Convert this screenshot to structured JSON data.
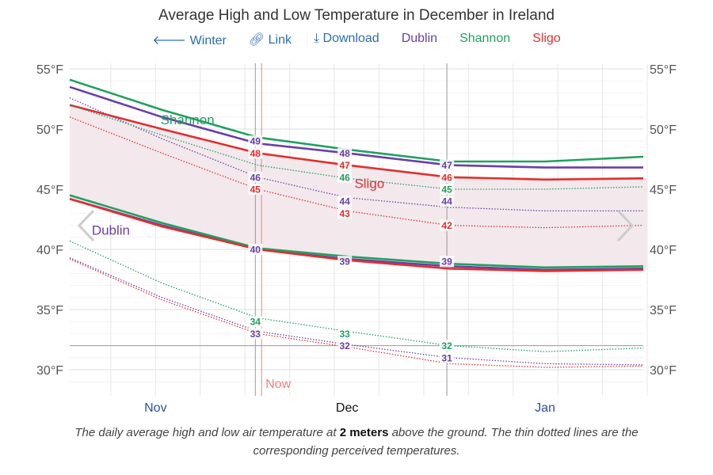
{
  "title": "Average High and Low Temperature in December in Ireland",
  "toolbar": {
    "back": "Winter",
    "link": "Link",
    "download": "Download",
    "legend": [
      "Dublin",
      "Shannon",
      "Sligo"
    ]
  },
  "now_label": "Now",
  "caption": {
    "pre": "The daily average high and low air temperature at ",
    "bold": "2 meters",
    "post": " above the ground. The thin dotted lines are the corresponding perceived temperatures."
  },
  "chart_data": {
    "type": "line",
    "title": "Average High and Low Temperature in December in Ireland",
    "x_unit": "day since Nov 1",
    "x": [
      0,
      15,
      30,
      44,
      60,
      75,
      91
    ],
    "months": [
      {
        "label": "Nov",
        "mid": 14,
        "color": "#2a4fa8"
      },
      {
        "label": "Dec",
        "mid": 44,
        "color": "#111"
      },
      {
        "label": "Jan",
        "mid": 75,
        "color": "#2a4fa8"
      }
    ],
    "month_bounds": [
      30,
      60
    ],
    "now_day": 30.6,
    "ylim": [
      28,
      56
    ],
    "yticks": [
      30,
      35,
      40,
      45,
      50,
      55
    ],
    "ytick_labels": [
      "30°F",
      "35°F",
      "40°F",
      "45°F",
      "50°F",
      "55°F"
    ],
    "freezing": 32,
    "band_color": "#f3e8ec",
    "series": [
      {
        "name": "Dublin",
        "kind": "high",
        "color": "#6a3fa8",
        "values": [
          53.5,
          51.0,
          48.8,
          48.0,
          47.0,
          46.8,
          46.8
        ]
      },
      {
        "name": "Shannon",
        "kind": "high",
        "color": "#22a060",
        "values": [
          54.1,
          51.6,
          49.3,
          48.3,
          47.3,
          47.3,
          47.7
        ]
      },
      {
        "name": "Sligo",
        "kind": "high",
        "color": "#e0302f",
        "values": [
          52.0,
          50.0,
          48.0,
          47.0,
          46.0,
          45.8,
          45.9
        ]
      },
      {
        "name": "Dublin",
        "kind": "low",
        "color": "#6a3fa8",
        "values": [
          44.2,
          42.0,
          40.0,
          39.2,
          38.6,
          38.3,
          38.4
        ]
      },
      {
        "name": "Shannon",
        "kind": "low",
        "color": "#22a060",
        "values": [
          44.5,
          42.2,
          40.1,
          39.4,
          38.8,
          38.5,
          38.6
        ]
      },
      {
        "name": "Sligo",
        "kind": "low",
        "color": "#e0302f",
        "values": [
          44.2,
          41.9,
          40.0,
          39.1,
          38.4,
          38.2,
          38.3
        ]
      },
      {
        "name": "Dublin",
        "kind": "perceived high",
        "color": "#6a3fa8",
        "values": [
          52.6,
          49.2,
          46.0,
          44.3,
          43.5,
          43.2,
          43.2
        ]
      },
      {
        "name": "Shannon",
        "kind": "perceived high",
        "color": "#22a060",
        "values": [
          52.0,
          49.5,
          47.0,
          45.9,
          45.0,
          45.0,
          45.2
        ]
      },
      {
        "name": "Sligo",
        "kind": "perceived high",
        "color": "#e0302f",
        "values": [
          51.0,
          48.0,
          45.0,
          43.2,
          42.0,
          41.8,
          42.0
        ]
      },
      {
        "name": "Dublin",
        "kind": "perceived low",
        "color": "#6a3fa8",
        "values": [
          39.3,
          36.0,
          33.2,
          32.1,
          31.0,
          30.5,
          30.4
        ]
      },
      {
        "name": "Shannon",
        "kind": "perceived low",
        "color": "#22a060",
        "values": [
          40.7,
          37.2,
          34.3,
          33.2,
          32.0,
          31.5,
          31.8
        ]
      },
      {
        "name": "Sligo",
        "kind": "perceived low",
        "color": "#e0302f",
        "values": [
          39.2,
          35.8,
          33.0,
          31.9,
          30.5,
          30.2,
          30.3
        ]
      }
    ],
    "point_labels": [
      {
        "day": 30,
        "value": 49,
        "color": "#6a3fa8"
      },
      {
        "day": 30,
        "value": 48,
        "color": "#e0302f"
      },
      {
        "day": 30,
        "value": 46,
        "color": "#6a3fa8"
      },
      {
        "day": 30,
        "value": 45,
        "color": "#e0302f"
      },
      {
        "day": 30,
        "value": 40,
        "color": "#6a3fa8"
      },
      {
        "day": 30,
        "value": 34,
        "color": "#22a060"
      },
      {
        "day": 30,
        "value": 33,
        "color": "#6a3fa8"
      },
      {
        "day": 44,
        "value": 48,
        "color": "#6a3fa8"
      },
      {
        "day": 44,
        "value": 47,
        "color": "#e0302f"
      },
      {
        "day": 44,
        "value": 46,
        "color": "#22a060"
      },
      {
        "day": 44,
        "value": 44,
        "color": "#6a3fa8"
      },
      {
        "day": 44,
        "value": 43,
        "color": "#e0302f"
      },
      {
        "day": 44,
        "value": 39,
        "color": "#6a3fa8"
      },
      {
        "day": 44,
        "value": 33,
        "color": "#22a060"
      },
      {
        "day": 44,
        "value": 32,
        "color": "#6a3fa8"
      },
      {
        "day": 60,
        "value": 47,
        "color": "#6a3fa8"
      },
      {
        "day": 60,
        "value": 46,
        "color": "#e0302f"
      },
      {
        "day": 60,
        "value": 45,
        "color": "#22a060"
      },
      {
        "day": 60,
        "value": 44,
        "color": "#6a3fa8"
      },
      {
        "day": 60,
        "value": 42,
        "color": "#e0302f"
      },
      {
        "day": 60,
        "value": 39,
        "color": "#6a3fa8"
      },
      {
        "day": 60,
        "value": 32,
        "color": "#22a060"
      },
      {
        "day": 60,
        "value": 31,
        "color": "#6a3fa8"
      }
    ],
    "series_labels": [
      {
        "text": "Shannon",
        "day": 19,
        "value": 50.8,
        "color": "#22a060"
      },
      {
        "text": "Dublin",
        "day": 7,
        "value": 41.6,
        "color": "#6a3fa8"
      },
      {
        "text": "Sligo",
        "day": 47.5,
        "value": 45.5,
        "color": "#e0302f"
      }
    ]
  }
}
